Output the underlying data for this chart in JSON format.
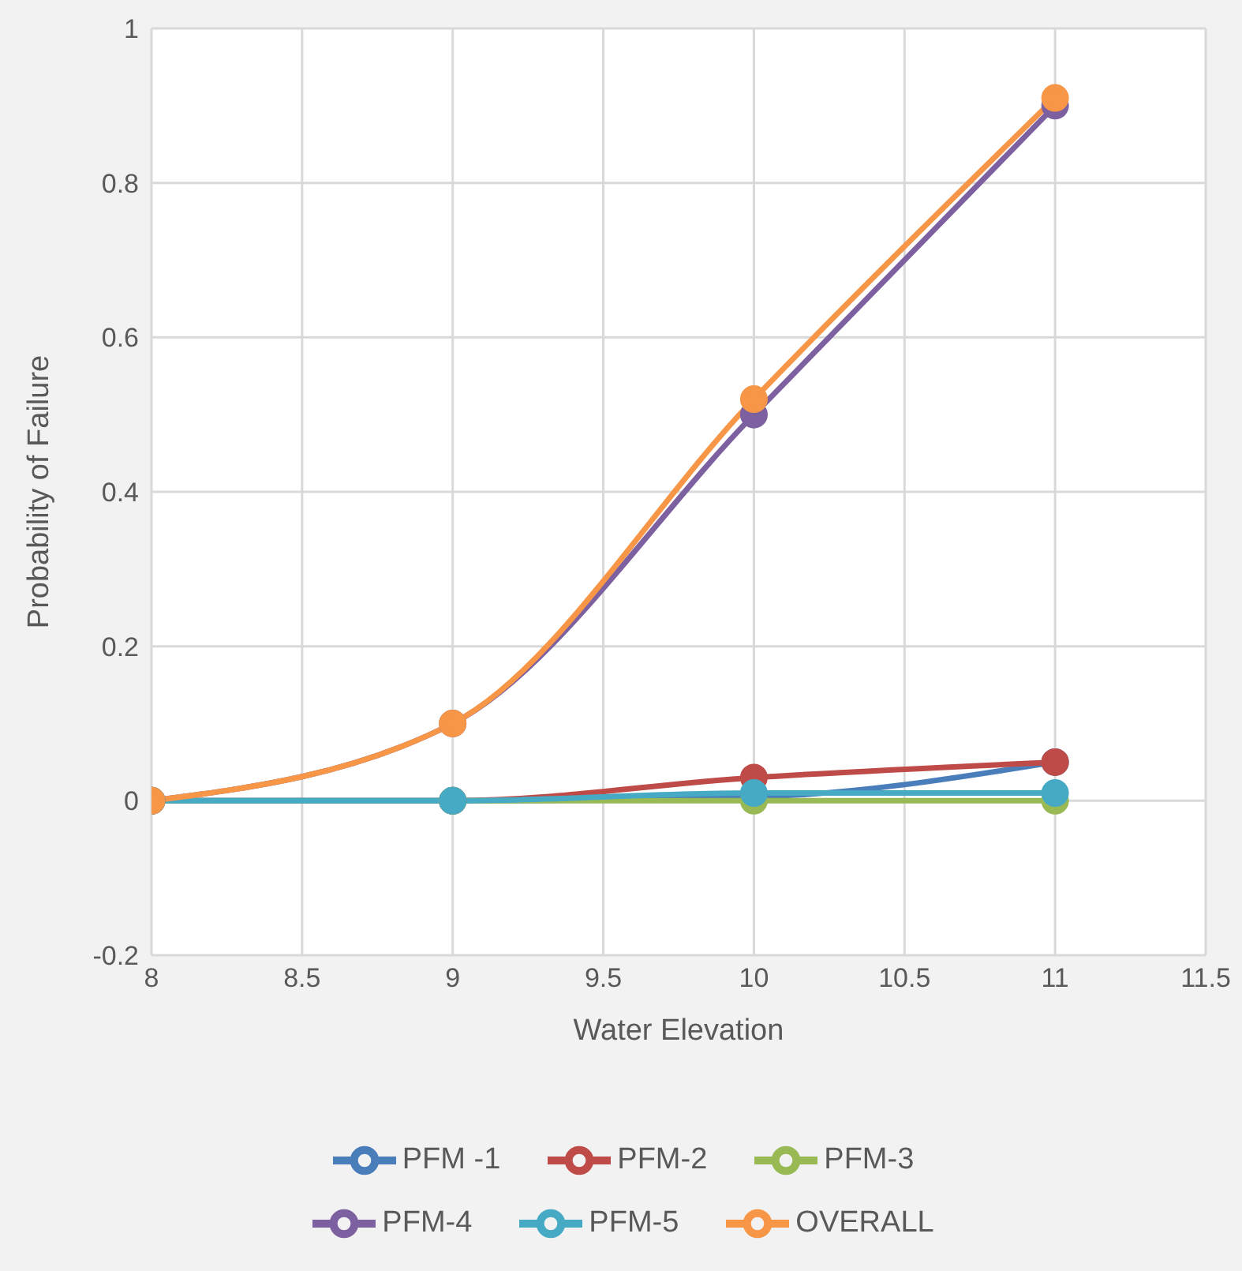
{
  "chart_data": {
    "type": "line",
    "xlabel": "Water Elevation",
    "ylabel": "Probability of Failure",
    "x": [
      8,
      9,
      10,
      11
    ],
    "series": [
      {
        "name": "PFM -1",
        "color": "#4a7ebb",
        "values": [
          0,
          0,
          0.005,
          0.05
        ]
      },
      {
        "name": "PFM-2",
        "color": "#be4b48",
        "values": [
          0,
          0,
          0.03,
          0.05
        ]
      },
      {
        "name": "PFM-3",
        "color": "#98b954",
        "values": [
          0,
          0,
          0,
          0
        ]
      },
      {
        "name": "PFM-4",
        "color": "#7d60a0",
        "values": [
          0,
          0.1,
          0.5,
          0.9
        ]
      },
      {
        "name": "PFM-5",
        "color": "#46aac5",
        "values": [
          0,
          0,
          0.01,
          0.01
        ]
      },
      {
        "name": "OVERALL",
        "color": "#f79646",
        "values": [
          0,
          0.1,
          0.52,
          0.91
        ]
      }
    ],
    "xlim": [
      8,
      11.5
    ],
    "xticks": [
      8,
      8.5,
      9,
      9.5,
      10,
      10.5,
      11,
      11.5
    ],
    "ylim": [
      -0.2,
      1
    ],
    "yticks": [
      -0.2,
      0,
      0.2,
      0.4,
      0.6,
      0.8,
      1
    ],
    "grid": true,
    "legend": "bottom",
    "marker": "circle",
    "line_style": "solid"
  }
}
